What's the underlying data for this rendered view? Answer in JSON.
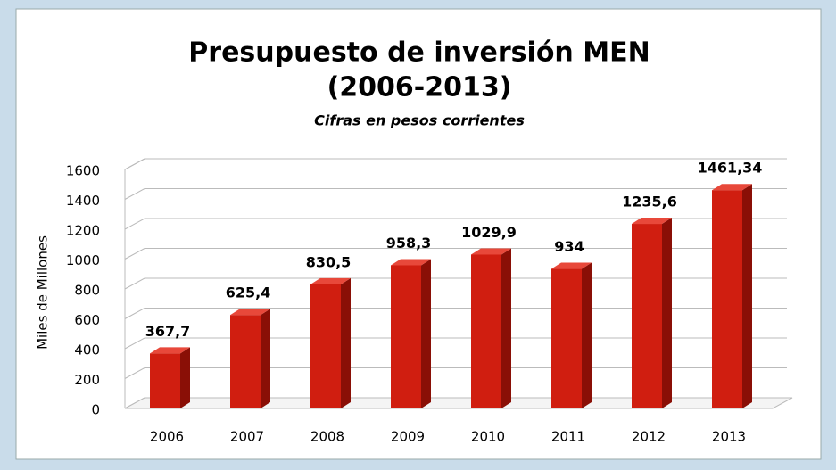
{
  "chart_data": {
    "type": "bar3d",
    "title": [
      "Presupuesto de inversión MEN",
      "(2006-2013)"
    ],
    "subtitle": "Cifras en pesos corrientes",
    "y_label": "Miles de Millones",
    "categories": [
      "2006",
      "2007",
      "2008",
      "2009",
      "2010",
      "2011",
      "2012",
      "2013"
    ],
    "values": [
      367.7,
      625.4,
      830.5,
      958.3,
      1029.9,
      934,
      1235.6,
      1461.34
    ],
    "value_labels": [
      "367,7",
      "625,4",
      "830,5",
      "958,3",
      "1029,9",
      "934",
      "1235,6",
      "1461,34"
    ],
    "color": "#d01e10",
    "ylim": [
      0,
      1600
    ],
    "yticks": [
      0,
      200,
      400,
      600,
      800,
      1000,
      1200,
      1400,
      1600
    ],
    "grid": true
  }
}
